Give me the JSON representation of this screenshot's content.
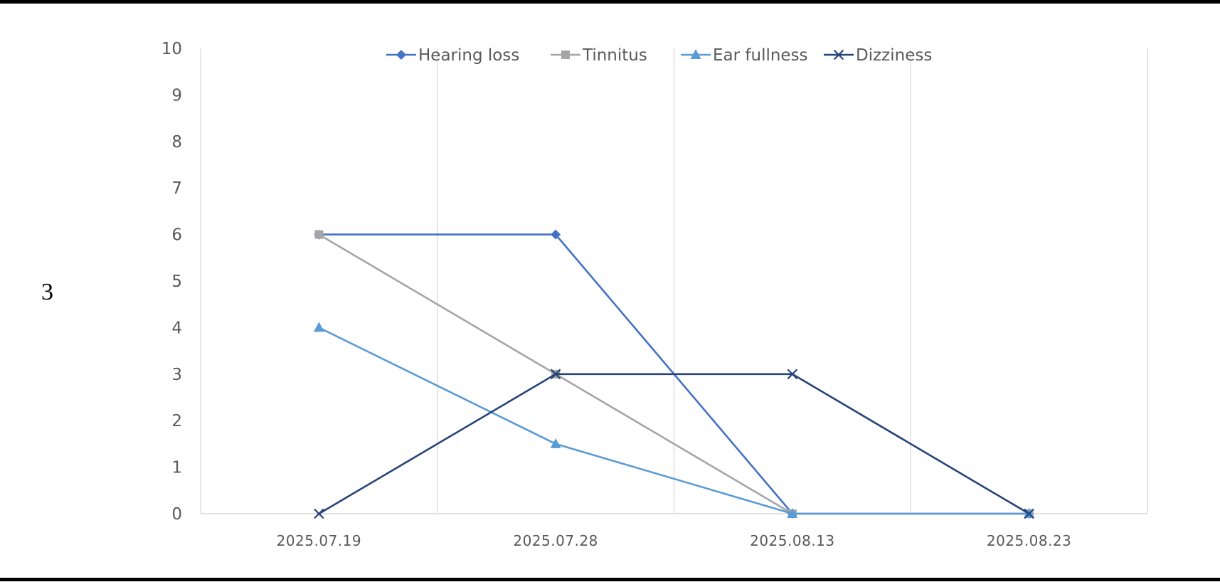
{
  "figure_number": "3",
  "chart_data": {
    "type": "line",
    "title": "",
    "xlabel": "",
    "ylabel": "",
    "categories": [
      "2025.07.19",
      "2025.07.28",
      "2025.08.13",
      "2025.08.23"
    ],
    "ylim": [
      0,
      10
    ],
    "yticks": [
      "0",
      "1",
      "2",
      "3",
      "4",
      "5",
      "6",
      "7",
      "8",
      "9",
      "10"
    ],
    "grid": "vertical",
    "legend_position": "top",
    "series": [
      {
        "name": "Hearing loss",
        "values": [
          6,
          6,
          0,
          0
        ],
        "color": "#4472C4",
        "marker": "diamond"
      },
      {
        "name": "Tinnitus",
        "values": [
          6,
          3,
          0,
          0
        ],
        "color": "#A5A5A5",
        "marker": "square"
      },
      {
        "name": "Ear fullness",
        "values": [
          4,
          1.5,
          0,
          0
        ],
        "color": "#5B9BD5",
        "marker": "triangle"
      },
      {
        "name": "Dizziness",
        "values": [
          0,
          3,
          3,
          0
        ],
        "color": "#264478",
        "marker": "x"
      }
    ]
  }
}
